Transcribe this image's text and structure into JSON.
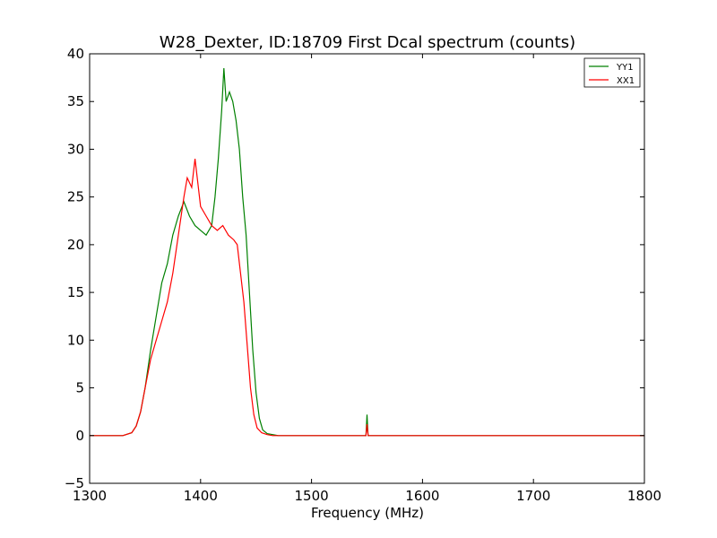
{
  "chart_data": {
    "type": "line",
    "title": "W28_Dexter, ID:18709 First Dcal spectrum (counts)",
    "xlabel": "Frequency (MHz)",
    "ylabel": "",
    "xlim": [
      1300,
      1800
    ],
    "ylim": [
      -5,
      40
    ],
    "xticks": [
      1300,
      1400,
      1500,
      1600,
      1700,
      1800
    ],
    "yticks": [
      -5,
      0,
      5,
      10,
      15,
      20,
      25,
      30,
      35,
      40
    ],
    "grid": false,
    "legend": "top-right",
    "series": [
      {
        "name": "YY1",
        "color": "#008000",
        "x": [
          1300,
          1330,
          1338,
          1342,
          1346,
          1350,
          1355,
          1360,
          1365,
          1370,
          1375,
          1380,
          1385,
          1390,
          1395,
          1400,
          1405,
          1410,
          1413,
          1416,
          1419,
          1421,
          1423,
          1426,
          1429,
          1432,
          1435,
          1438,
          1441,
          1444,
          1447,
          1450,
          1453,
          1456,
          1460,
          1465,
          1470,
          1500,
          1549,
          1550,
          1551,
          1600,
          1700,
          1800
        ],
        "y": [
          0,
          0,
          0.3,
          1,
          2.5,
          5,
          9,
          12.5,
          16,
          18,
          21,
          23,
          24.5,
          23,
          22,
          21.5,
          21,
          22,
          25,
          29,
          34,
          38.5,
          35,
          36,
          35,
          33,
          30,
          25,
          21,
          15,
          9,
          4.5,
          1.8,
          0.6,
          0.2,
          0.1,
          0,
          0,
          0,
          2.2,
          0,
          0,
          0,
          0
        ]
      },
      {
        "name": "XX1",
        "color": "#ff0000",
        "x": [
          1300,
          1330,
          1338,
          1342,
          1346,
          1350,
          1355,
          1360,
          1365,
          1370,
          1375,
          1380,
          1385,
          1388,
          1392,
          1395,
          1400,
          1405,
          1410,
          1415,
          1420,
          1425,
          1430,
          1433,
          1436,
          1439,
          1442,
          1445,
          1448,
          1451,
          1455,
          1460,
          1465,
          1470,
          1500,
          1549,
          1550,
          1551,
          1600,
          1700,
          1800
        ],
        "y": [
          0,
          0,
          0.3,
          1,
          2.5,
          5,
          8,
          10,
          12,
          14,
          17,
          21,
          25,
          27,
          26,
          29,
          24,
          23,
          22,
          21.5,
          22,
          21,
          20.5,
          20,
          17,
          14,
          9.5,
          5,
          2.2,
          0.8,
          0.3,
          0.1,
          0,
          0,
          0,
          0,
          1.2,
          0,
          0,
          0,
          0
        ]
      }
    ]
  }
}
